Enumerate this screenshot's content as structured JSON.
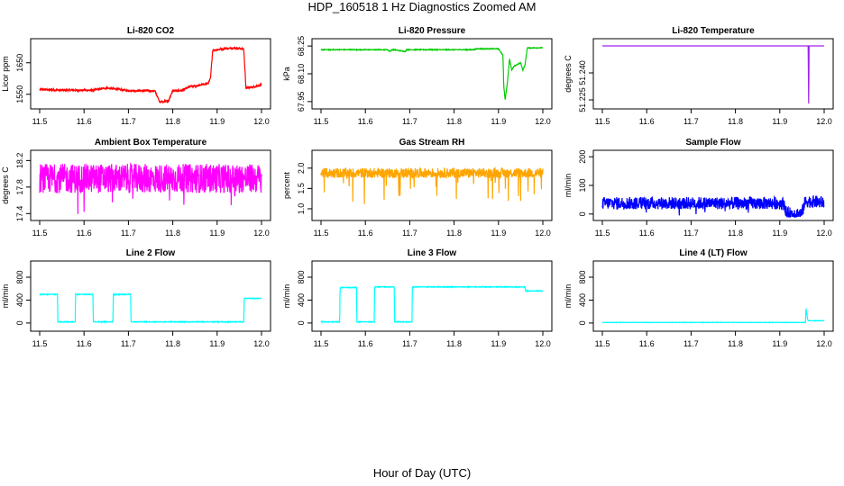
{
  "page": {
    "title": "HDP_160518  1 Hz Diagnostics Zoomed AM",
    "xlabel": "Hour of Day (UTC)"
  },
  "chart_data": [
    {
      "type": "line",
      "title": "Li-820 CO2",
      "ylabel": "Licor ppm",
      "color": "#ff0000",
      "xlim": [
        11.5,
        12.0
      ],
      "ylim": [
        1515,
        1715
      ],
      "xticks": [
        "11.5",
        "11.6",
        "11.7",
        "11.8",
        "11.9",
        "12.0"
      ],
      "yticks": [
        "1550",
        "1650"
      ],
      "ytick_values": [
        1550,
        1650
      ],
      "noise": 3,
      "spikes": 0,
      "x": [
        11.5,
        11.55,
        11.62,
        11.65,
        11.7,
        11.75,
        11.76,
        11.77,
        11.79,
        11.8,
        11.82,
        11.84,
        11.86,
        11.88,
        11.885,
        11.89,
        11.92,
        11.94,
        11.96,
        11.965,
        11.98,
        12.0
      ],
      "y": [
        1565,
        1563,
        1563,
        1570,
        1562,
        1561,
        1560,
        1527,
        1528,
        1560,
        1562,
        1575,
        1578,
        1585,
        1600,
        1690,
        1695,
        1697,
        1694,
        1570,
        1573,
        1580
      ]
    },
    {
      "type": "line",
      "title": "Li-820 Pressure",
      "ylabel": "kPa",
      "color": "#00cc00",
      "xlim": [
        11.5,
        12.0
      ],
      "ylim": [
        67.93,
        68.27
      ],
      "xticks": [
        "11.5",
        "11.6",
        "11.7",
        "11.8",
        "11.9",
        "12.0"
      ],
      "yticks": [
        "67.95",
        "68.10",
        "68.25"
      ],
      "ytick_values": [
        67.95,
        68.1,
        68.25
      ],
      "noise": 0.002,
      "spikes": 0,
      "x": [
        11.5,
        11.65,
        11.655,
        11.66,
        11.665,
        11.69,
        11.693,
        11.7,
        11.845,
        11.85,
        11.9,
        11.91,
        11.912,
        11.915,
        11.92,
        11.925,
        11.93,
        11.935,
        11.95,
        11.955,
        11.96,
        11.965,
        12.0
      ],
      "y": [
        68.23,
        68.23,
        68.22,
        68.23,
        68.23,
        68.22,
        68.23,
        68.23,
        68.23,
        68.235,
        68.235,
        68.2,
        68.03,
        67.96,
        68.05,
        68.18,
        68.12,
        68.14,
        68.16,
        68.12,
        68.15,
        68.24,
        68.24
      ]
    },
    {
      "type": "line",
      "title": "Li-820 Temperature",
      "ylabel": "degrees C",
      "color": "#a020f0",
      "xlim": [
        11.5,
        12.0
      ],
      "ylim": [
        51.222,
        51.257
      ],
      "xticks": [
        "11.5",
        "11.6",
        "11.7",
        "11.8",
        "11.9",
        "12.0"
      ],
      "yticks": [
        "51.225",
        "51.240"
      ],
      "ytick_values": [
        51.225,
        51.24
      ],
      "noise": 0,
      "spikes": 0,
      "x": [
        11.5,
        11.964,
        11.965,
        11.966,
        11.967,
        12.0
      ],
      "y": [
        51.255,
        51.255,
        51.223,
        51.255,
        51.255,
        51.255
      ]
    },
    {
      "type": "line",
      "title": "Ambient Box Temperature",
      "ylabel": "degrees C",
      "color": "#ff00ff",
      "xlim": [
        11.5,
        12.0
      ],
      "ylim": [
        17.35,
        18.3
      ],
      "xticks": [
        "11.5",
        "11.6",
        "11.7",
        "11.8",
        "11.9",
        "12.0"
      ],
      "yticks": [
        "17.4",
        "17.8",
        "18.2"
      ],
      "ytick_values": [
        17.4,
        17.8,
        18.2
      ],
      "noise": 0.22,
      "spikes": 0.4,
      "x": [
        11.5,
        12.0
      ],
      "y": [
        17.93,
        17.93
      ]
    },
    {
      "type": "line",
      "title": "Gas Stream RH",
      "ylabel": "percent",
      "color": "#ffa500",
      "xlim": [
        11.5,
        12.0
      ],
      "ylim": [
        0.8,
        2.35
      ],
      "xticks": [
        "11.5",
        "11.6",
        "11.7",
        "11.8",
        "11.9",
        "12.0"
      ],
      "yticks": [
        "1.0",
        "1.5",
        "2.0"
      ],
      "ytick_values": [
        1.0,
        1.5,
        2.0
      ],
      "noise": 0.12,
      "spikes": 0.7,
      "x": [
        11.5,
        12.0
      ],
      "y": [
        1.88,
        1.88
      ]
    },
    {
      "type": "line",
      "title": "Sample Flow",
      "ylabel": "ml/min",
      "color": "#0000ff",
      "xlim": [
        11.5,
        12.0
      ],
      "ylim": [
        -10,
        210
      ],
      "xticks": [
        "11.5",
        "11.6",
        "11.7",
        "11.8",
        "11.9",
        "12.0"
      ],
      "yticks": [
        "0",
        "100",
        "200"
      ],
      "ytick_values": [
        0,
        100,
        200
      ],
      "noise": 22,
      "spikes": 40,
      "x": [
        11.5,
        11.9,
        11.91,
        11.915,
        11.95,
        11.955,
        11.96,
        12.0
      ],
      "y": [
        38,
        38,
        35,
        2,
        2,
        35,
        45,
        40
      ]
    },
    {
      "type": "line",
      "title": "Line 2 Flow",
      "ylabel": "ml/min",
      "color": "#00ffff",
      "xlim": [
        11.5,
        12.0
      ],
      "ylim": [
        -80,
        1020
      ],
      "xticks": [
        "11.5",
        "11.6",
        "11.7",
        "11.8",
        "11.9",
        "12.0"
      ],
      "yticks": [
        "0",
        "400",
        "800"
      ],
      "ytick_values": [
        0,
        400,
        800
      ],
      "noise": 6,
      "spikes": 0,
      "x": [
        11.5,
        11.54,
        11.541,
        11.58,
        11.581,
        11.62,
        11.621,
        11.665,
        11.666,
        11.705,
        11.706,
        11.96,
        11.961,
        12.0
      ],
      "y": [
        500,
        500,
        20,
        20,
        500,
        500,
        20,
        20,
        500,
        500,
        20,
        20,
        430,
        430
      ]
    },
    {
      "type": "line",
      "title": "Line 3 Flow",
      "ylabel": "ml/min",
      "color": "#00ffff",
      "xlim": [
        11.5,
        12.0
      ],
      "ylim": [
        -80,
        1020
      ],
      "xticks": [
        "11.5",
        "11.6",
        "11.7",
        "11.8",
        "11.9",
        "12.0"
      ],
      "yticks": [
        "0",
        "400",
        "800"
      ],
      "ytick_values": [
        0,
        400,
        800
      ],
      "noise": 6,
      "spikes": 0,
      "x": [
        11.5,
        11.542,
        11.543,
        11.58,
        11.581,
        11.62,
        11.621,
        11.665,
        11.666,
        11.705,
        11.706,
        11.96,
        11.961,
        12.0
      ],
      "y": [
        20,
        20,
        620,
        620,
        20,
        20,
        630,
        630,
        20,
        20,
        630,
        630,
        560,
        560
      ]
    },
    {
      "type": "line",
      "title": "Line 4 (LT) Flow",
      "ylabel": "ml/min",
      "color": "#00ffff",
      "xlim": [
        11.5,
        12.0
      ],
      "ylim": [
        -80,
        1020
      ],
      "xticks": [
        "11.5",
        "11.6",
        "11.7",
        "11.8",
        "11.9",
        "12.0"
      ],
      "yticks": [
        "0",
        "400",
        "800"
      ],
      "ytick_values": [
        0,
        400,
        800
      ],
      "noise": 3,
      "spikes": 0,
      "x": [
        11.5,
        11.958,
        11.959,
        11.963,
        11.964,
        12.0
      ],
      "y": [
        10,
        10,
        260,
        50,
        40,
        40
      ]
    }
  ]
}
